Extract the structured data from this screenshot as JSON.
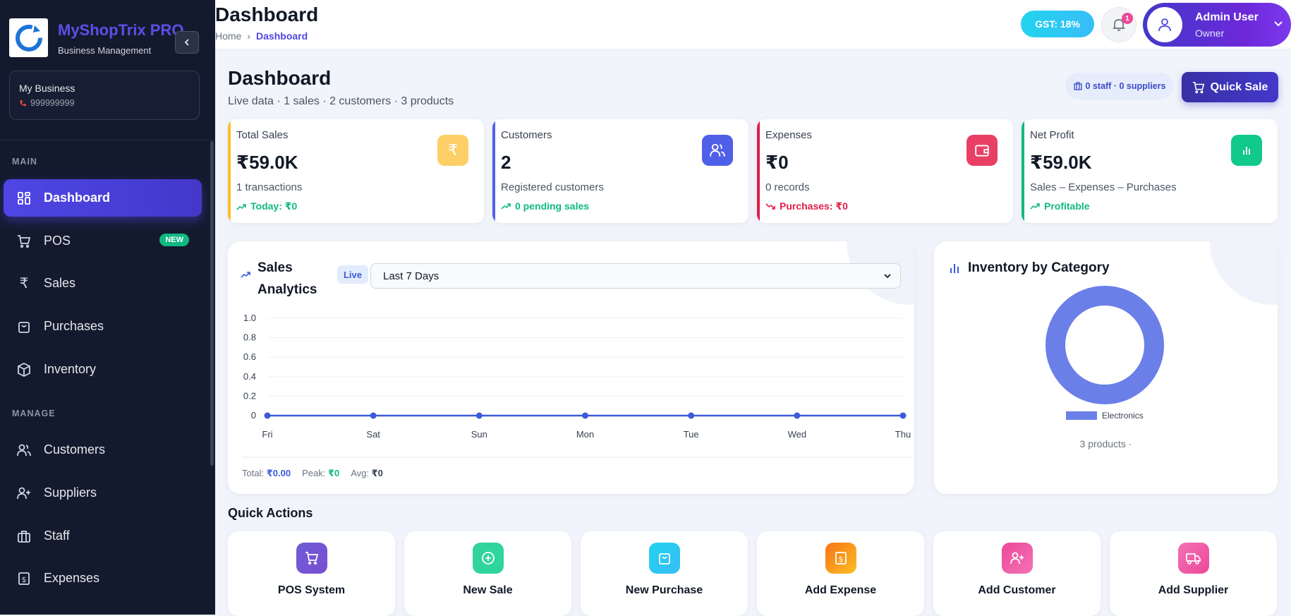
{
  "brand": {
    "name": "MyShopTrix PRO",
    "subtitle": "Business Management"
  },
  "business": {
    "name": "My Business",
    "phone": "999999999"
  },
  "sidebar": {
    "sections": [
      "MAIN",
      "MANAGE"
    ],
    "items": [
      {
        "label": "Dashboard",
        "icon": "grid-icon",
        "active": true
      },
      {
        "label": "POS",
        "icon": "cart-icon",
        "badge": "NEW"
      },
      {
        "label": "Sales",
        "icon": "rupee-icon"
      },
      {
        "label": "Purchases",
        "icon": "bag-icon"
      },
      {
        "label": "Inventory",
        "icon": "box-icon"
      },
      {
        "label": "Customers",
        "icon": "users-icon"
      },
      {
        "label": "Suppliers",
        "icon": "user-plus-icon"
      },
      {
        "label": "Staff",
        "icon": "briefcase-icon"
      },
      {
        "label": "Expenses",
        "icon": "receipt-icon"
      }
    ]
  },
  "topbar": {
    "title": "Dashboard",
    "breadcrumb": [
      "Home",
      "Dashboard"
    ],
    "breadcrumb_sep": "›",
    "gst": "GST: 18%",
    "notifications": "1",
    "user": {
      "name": "Admin User",
      "role": "Owner"
    }
  },
  "page": {
    "title": "Dashboard",
    "subtitle": "Live data · 1 sales · 2 customers · 3 products",
    "staff_summary": "0 staff · 0 suppliers",
    "quick_sale": "Quick Sale"
  },
  "stats": [
    {
      "label": "Total Sales",
      "value": "₹59.0K",
      "desc": "1 transactions",
      "trend": "Today: ₹0",
      "trend_dir": "up",
      "color": "#fbbf24",
      "icon": "rupee-icon"
    },
    {
      "label": "Customers",
      "value": "2",
      "desc": "Registered customers",
      "trend": "0 pending sales",
      "trend_dir": "up",
      "color": "#4f5fe8",
      "icon": "users-icon"
    },
    {
      "label": "Expenses",
      "value": "₹0",
      "desc": "0 records",
      "trend": "Purchases: ₹0",
      "trend_dir": "down",
      "color": "#e11d48",
      "icon": "wallet-icon"
    },
    {
      "label": "Net Profit",
      "value": "₹59.0K",
      "desc": "Sales – Expenses – Purchases",
      "trend": "Profitable",
      "trend_dir": "up",
      "color": "#10b981",
      "icon": "bar-chart-icon"
    }
  ],
  "sales_analytics": {
    "title": "Sales Analytics",
    "live": "Live",
    "range": "Last 7 Days",
    "footer": {
      "total_label": "Total:",
      "total": "₹0.00",
      "peak_label": "Peak:",
      "peak": "₹0",
      "avg_label": "Avg:",
      "avg": "₹0"
    }
  },
  "chart_data": [
    {
      "type": "line",
      "title": "Sales Analytics",
      "categories": [
        "Fri",
        "Sat",
        "Sun",
        "Mon",
        "Tue",
        "Wed",
        "Thu"
      ],
      "values": [
        0,
        0,
        0,
        0,
        0,
        0,
        0
      ],
      "yticks": [
        "0",
        "0.2",
        "0.4",
        "0.6",
        "0.8",
        "1.0"
      ],
      "ylim": [
        0,
        1
      ],
      "grid": true,
      "color": "#3b5bdb"
    },
    {
      "type": "pie",
      "title": "Inventory by Category",
      "variant": "donut",
      "labels": [
        "Electronics"
      ],
      "values": [
        3
      ],
      "colors": [
        "#6b7fe8"
      ],
      "legend": "bottom"
    }
  ],
  "inventory": {
    "title": "Inventory by Category",
    "footer": "3 products ·"
  },
  "quick_actions": {
    "title": "Quick Actions",
    "items": [
      {
        "label": "POS System",
        "icon": "cart-icon",
        "color": "#6d5cd6"
      },
      {
        "label": "New Sale",
        "icon": "plus-circle-icon",
        "color": "#34d399"
      },
      {
        "label": "New Purchase",
        "icon": "bag-icon",
        "color": "#22c5ee"
      },
      {
        "label": "Add Expense",
        "icon": "receipt-icon",
        "color": "#f97316"
      },
      {
        "label": "Add Customer",
        "icon": "user-plus-icon",
        "color": "#ec4899"
      },
      {
        "label": "Add Supplier",
        "icon": "truck-icon",
        "color": "#f472b6"
      }
    ]
  }
}
